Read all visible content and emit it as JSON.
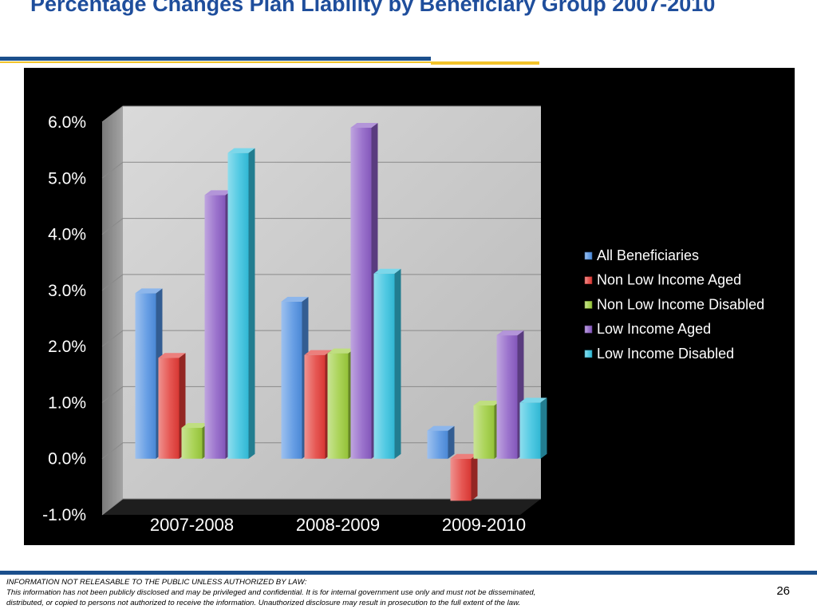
{
  "slide": {
    "title": "Percentage Changes Plan Liability by Beneficiary Group 2007-2010",
    "footer": {
      "line1": "INFORMATION NOT RELEASABLE TO THE PUBLIC UNLESS AUTHORIZED BY LAW:",
      "line2": "This information has not been publicly disclosed and may be privileged and confidential.  It is for internal government use only and must not be disseminated,",
      "line3": "distributed, or copied to persons not authorized to receive the information.  Unauthorized disclosure may result in prosecution to the full extent of the law."
    },
    "page_number": "26"
  },
  "chart_data": {
    "type": "bar",
    "style": "3d clustered column",
    "categories": [
      "2007-2008",
      "2008-2009",
      "2009-2010"
    ],
    "series": [
      {
        "name": "All Beneficiaries",
        "values": [
          2.95,
          2.8,
          0.5
        ],
        "color": "#4f8fe0"
      },
      {
        "name": "Non Low Income Aged",
        "values": [
          1.8,
          1.85,
          -0.75
        ],
        "color": "#e23a36"
      },
      {
        "name": "Non Low Income Disabled",
        "values": [
          0.55,
          1.88,
          0.95
        ],
        "color": "#9ccc3c"
      },
      {
        "name": "Low Income Aged",
        "values": [
          4.7,
          5.9,
          2.2
        ],
        "color": "#8a5cc4"
      },
      {
        "name": "Low Income Disabled",
        "values": [
          5.45,
          3.3,
          1.0
        ],
        "color": "#34c1de"
      }
    ],
    "y_ticks": [
      "6.0%",
      "5.0%",
      "4.0%",
      "3.0%",
      "2.0%",
      "1.0%",
      "0.0%",
      "-1.0%"
    ],
    "ylim": [
      -1.0,
      6.0
    ],
    "grid": true,
    "legend": "right",
    "title": "",
    "xlabel": "",
    "ylabel": ""
  }
}
